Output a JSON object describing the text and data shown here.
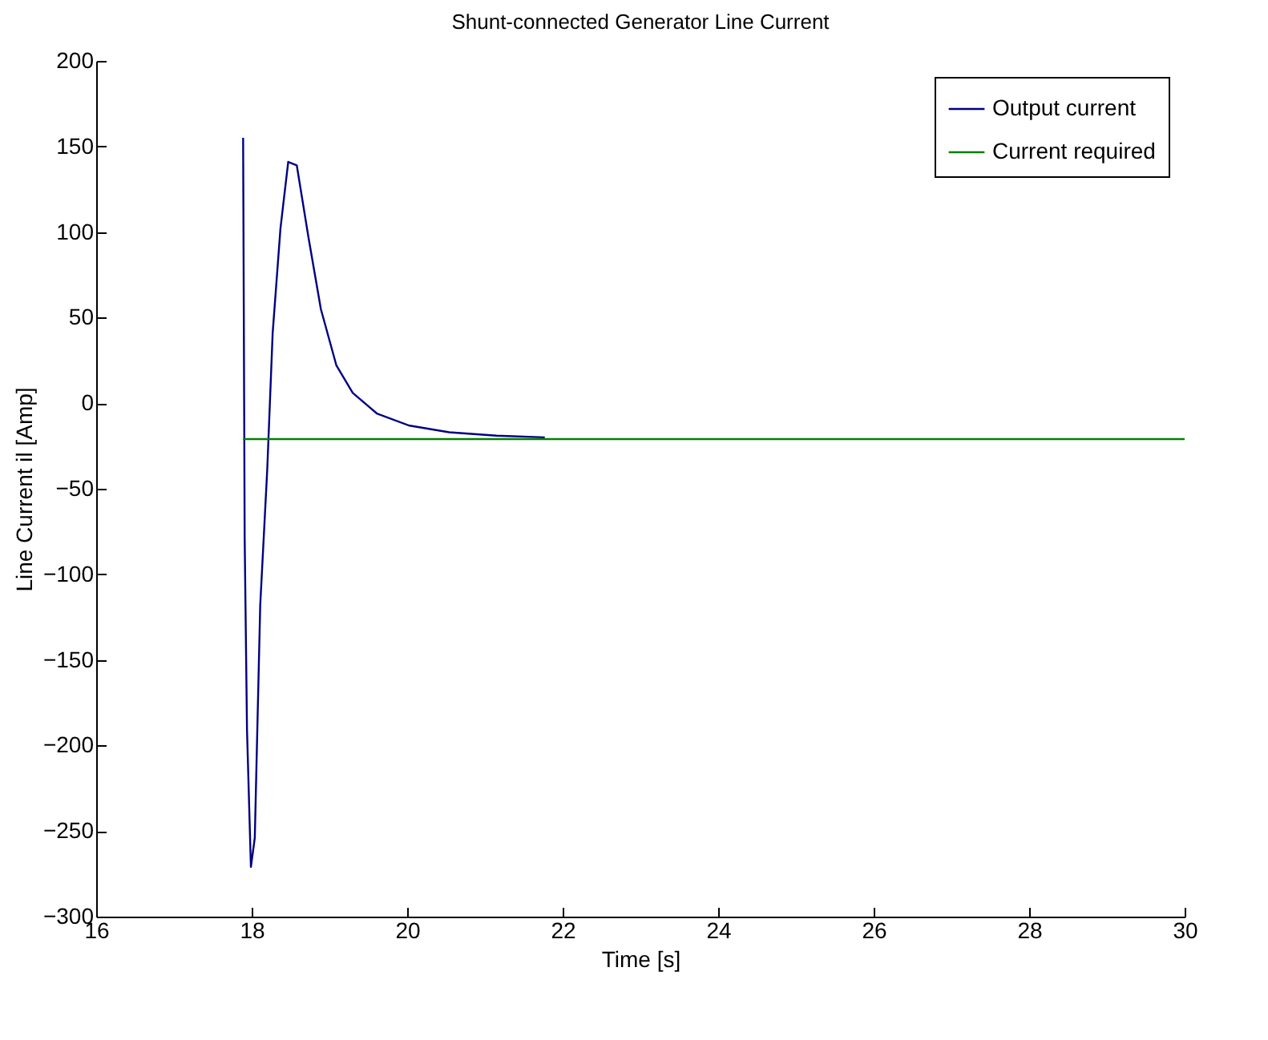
{
  "chart_data": {
    "type": "line",
    "title": "Shunt-connected Generator Line Current",
    "xlabel": "Time [s]",
    "ylabel": "Line Current il [Amp]",
    "xlim": [
      16,
      30
    ],
    "xticks": [
      16,
      18,
      20,
      22,
      24,
      26,
      28,
      30
    ],
    "ylim": [
      -300,
      200
    ],
    "yticks": [
      -300,
      -250,
      -200,
      -150,
      -100,
      -50,
      0,
      50,
      100,
      150,
      200
    ],
    "grid": false,
    "legend": "top right",
    "line_style": "solid",
    "series": [
      {
        "name": "Output current",
        "color": "#000080",
        "x": [
          17.89,
          17.91,
          17.94,
          17.99,
          18.04,
          18.11,
          18.2,
          18.27,
          18.37,
          18.47,
          18.58,
          18.73,
          18.89,
          19.09,
          19.3,
          19.61,
          20.02,
          20.54,
          21.15,
          21.77
        ],
        "values": [
          155,
          -79,
          -191,
          -271,
          -254,
          -118,
          -39,
          41,
          102,
          141,
          139,
          97,
          55,
          22,
          6,
          -6,
          -13,
          -17,
          -19,
          -20
        ]
      },
      {
        "name": "Current required",
        "color": "#008000",
        "x": [
          17.89,
          30
        ],
        "values": [
          -21,
          -21
        ]
      }
    ]
  }
}
